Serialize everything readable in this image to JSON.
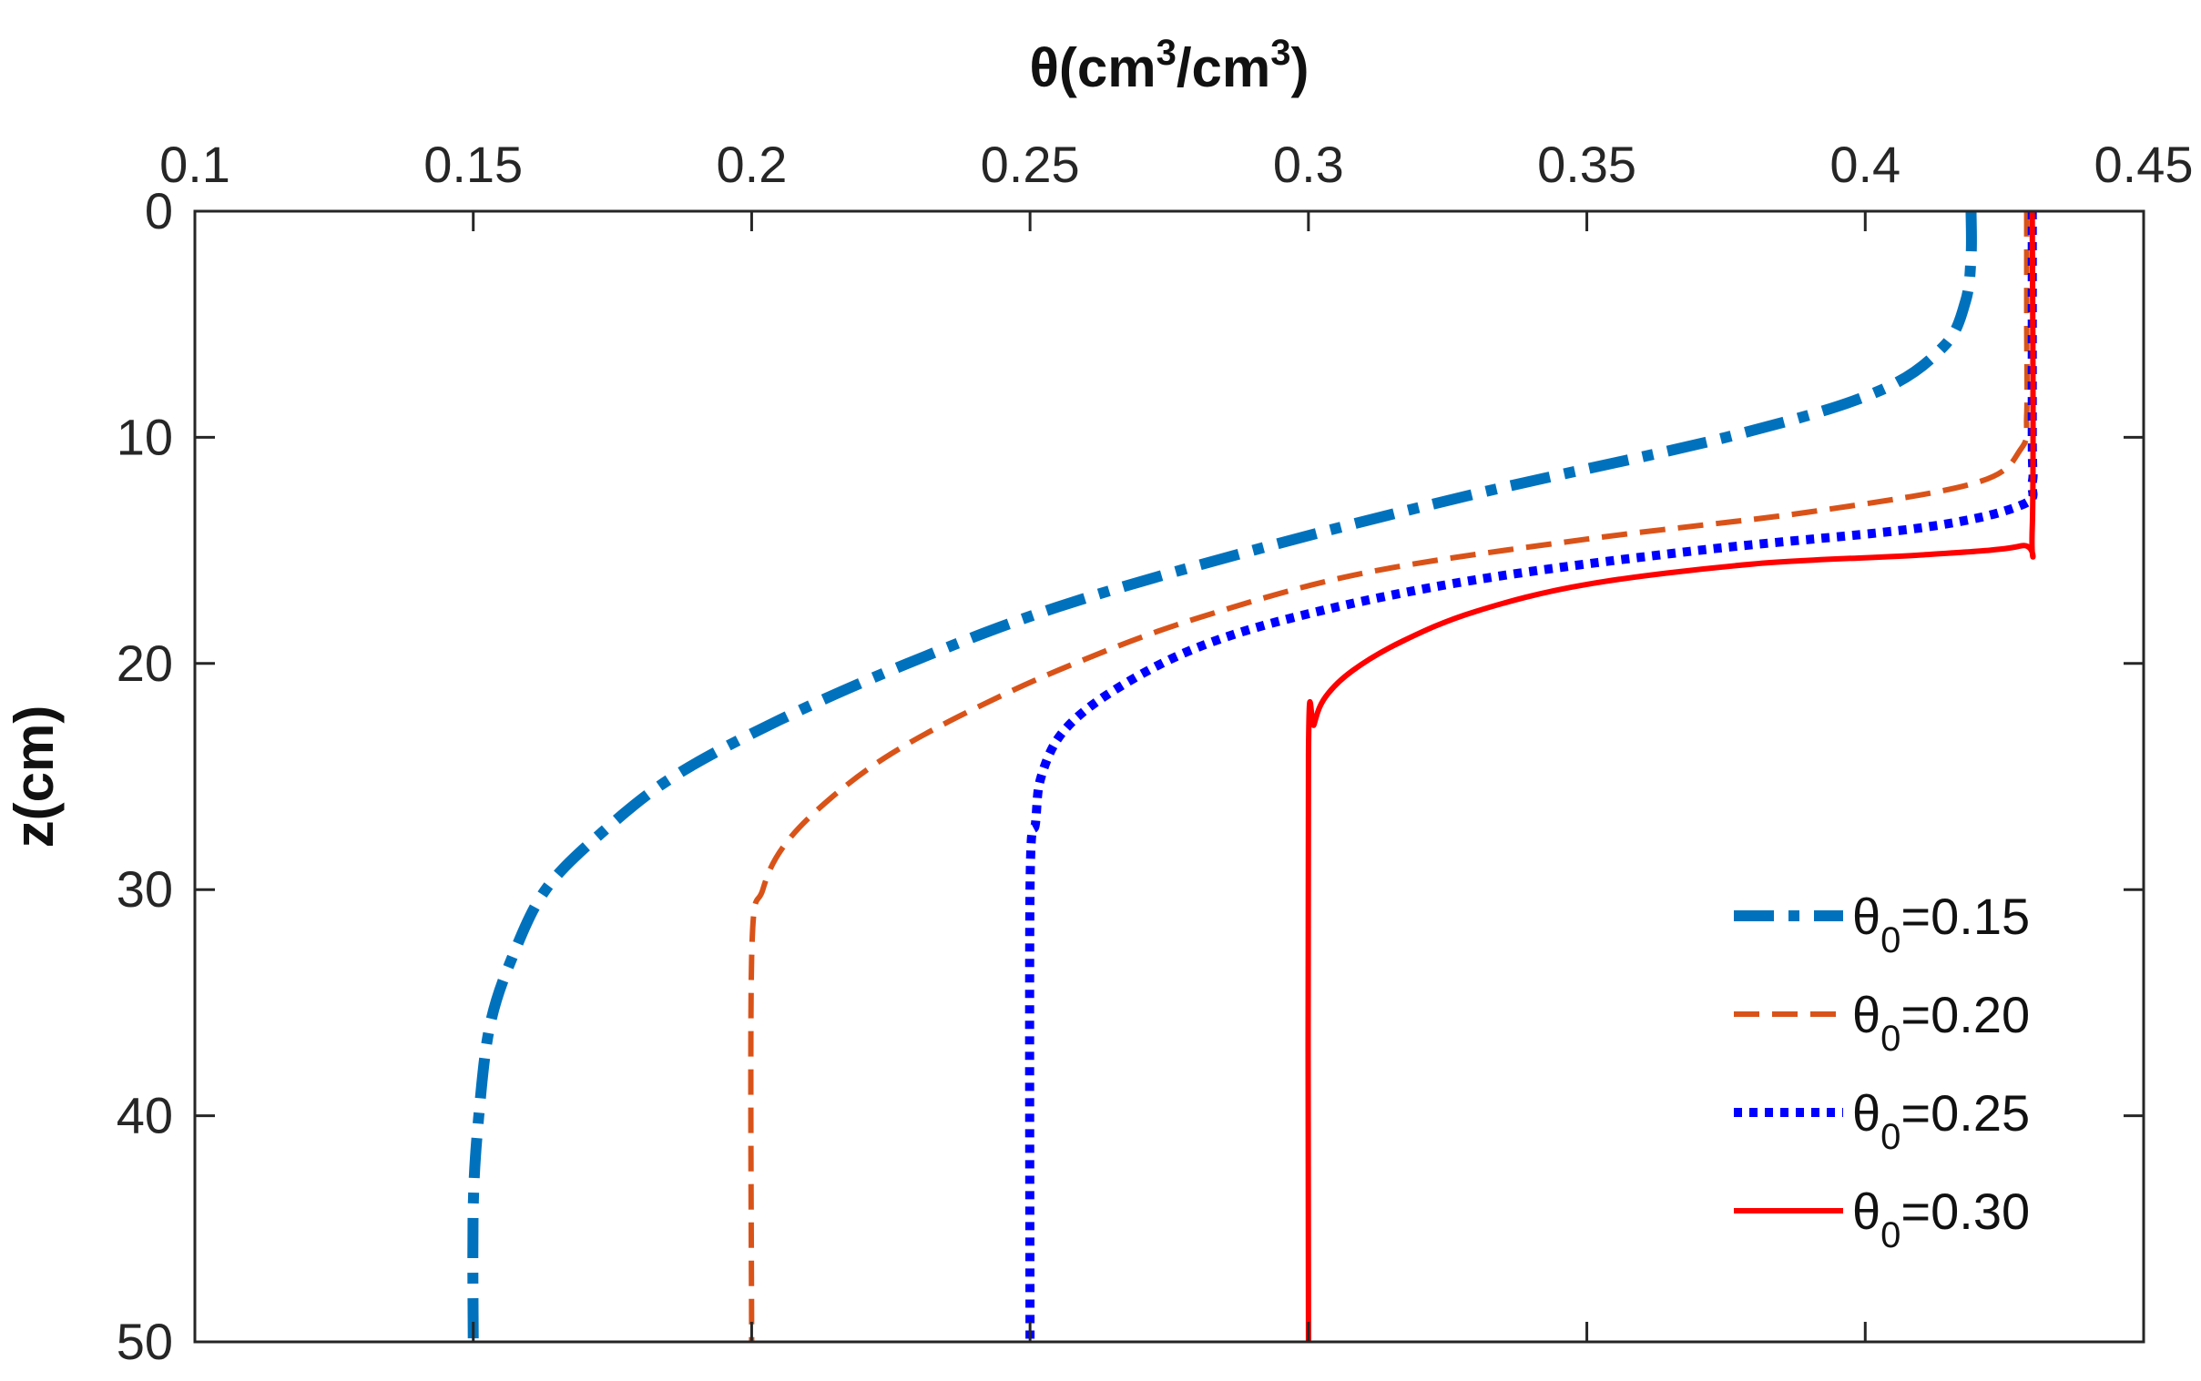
{
  "chart_data": {
    "type": "line",
    "title": "",
    "xlabel": "θ(cm3/cm3)",
    "xlabel_parts": {
      "theta": "θ",
      "open": "(cm",
      "sup1": "3",
      "mid": "/cm",
      "sup2": "3",
      "close": ")"
    },
    "ylabel": "z(cm)",
    "x_axis_position": "top",
    "y_axis_reversed": true,
    "xlim": [
      0.1,
      0.45
    ],
    "ylim": [
      0,
      50
    ],
    "xticks": [
      0.1,
      0.15,
      0.2,
      0.25,
      0.3,
      0.35,
      0.4,
      0.45
    ],
    "xtick_labels": [
      "0.1",
      "0.15",
      "0.2",
      "0.25",
      "0.3",
      "0.35",
      "0.4",
      "0.45"
    ],
    "yticks": [
      0,
      10,
      20,
      30,
      40,
      50
    ],
    "ytick_labels": [
      "0",
      "10",
      "20",
      "30",
      "40",
      "50"
    ],
    "grid": false,
    "legend_position": "bottom-right",
    "series": [
      {
        "name": "θ0=0.15",
        "legend_parts": {
          "theta": "θ",
          "sub": "0",
          "value": "=0.15"
        },
        "color": "#0072BD",
        "style": "dash-dot",
        "points": [
          [
            0.419,
            0
          ],
          [
            0.419,
            2
          ],
          [
            0.418,
            4
          ],
          [
            0.414,
            6
          ],
          [
            0.402,
            8
          ],
          [
            0.375,
            10
          ],
          [
            0.33,
            12.5
          ],
          [
            0.29,
            15
          ],
          [
            0.255,
            17.5
          ],
          [
            0.228,
            20
          ],
          [
            0.205,
            22.5
          ],
          [
            0.186,
            25
          ],
          [
            0.173,
            27.5
          ],
          [
            0.163,
            30
          ],
          [
            0.157,
            33
          ],
          [
            0.153,
            36
          ],
          [
            0.151,
            40
          ],
          [
            0.15,
            44
          ],
          [
            0.15,
            50
          ]
        ]
      },
      {
        "name": "θ0=0.20",
        "legend_parts": {
          "theta": "θ",
          "sub": "0",
          "value": "=0.20"
        },
        "color": "#D95319",
        "style": "dashed",
        "points": [
          [
            0.429,
            0
          ],
          [
            0.429,
            5
          ],
          [
            0.429,
            9
          ],
          [
            0.428,
            10.5
          ],
          [
            0.42,
            12
          ],
          [
            0.39,
            13.3
          ],
          [
            0.35,
            14.5
          ],
          [
            0.31,
            16
          ],
          [
            0.28,
            18
          ],
          [
            0.258,
            20
          ],
          [
            0.24,
            22
          ],
          [
            0.225,
            24
          ],
          [
            0.214,
            26
          ],
          [
            0.206,
            28
          ],
          [
            0.202,
            30
          ],
          [
            0.2,
            33
          ],
          [
            0.2,
            50
          ]
        ]
      },
      {
        "name": "θ0=0.25",
        "legend_parts": {
          "theta": "θ",
          "sub": "0",
          "value": "=0.25"
        },
        "color": "#0000FF",
        "style": "dotted",
        "points": [
          [
            0.43,
            0
          ],
          [
            0.43,
            10
          ],
          [
            0.43,
            12
          ],
          [
            0.428,
            13
          ],
          [
            0.41,
            14
          ],
          [
            0.37,
            15
          ],
          [
            0.33,
            16.3
          ],
          [
            0.3,
            17.8
          ],
          [
            0.28,
            19.3
          ],
          [
            0.265,
            21.2
          ],
          [
            0.256,
            23
          ],
          [
            0.252,
            25
          ],
          [
            0.251,
            27
          ],
          [
            0.25,
            30
          ],
          [
            0.25,
            50
          ]
        ]
      },
      {
        "name": "θ0=0.30",
        "legend_parts": {
          "theta": "θ",
          "sub": "0",
          "value": "=0.30"
        },
        "color": "#FF0000",
        "style": "solid",
        "points": [
          [
            0.43,
            0
          ],
          [
            0.43,
            14
          ],
          [
            0.428,
            14.8
          ],
          [
            0.41,
            15.2
          ],
          [
            0.38,
            15.6
          ],
          [
            0.35,
            16.5
          ],
          [
            0.33,
            17.7
          ],
          [
            0.317,
            19
          ],
          [
            0.308,
            20.3
          ],
          [
            0.303,
            21.5
          ],
          [
            0.301,
            22.7
          ],
          [
            0.3,
            24
          ],
          [
            0.3,
            50
          ]
        ]
      }
    ]
  }
}
